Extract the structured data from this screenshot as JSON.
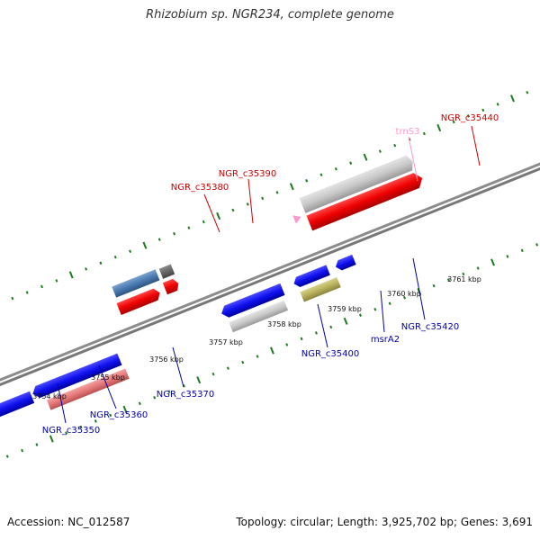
{
  "title": "Rhizobium sp. NGR234, complete genome",
  "footer": {
    "accession": "Accession: NC_012587",
    "topology": "Topology: circular; Length: 3,925,702 bp; Genes: 3,691"
  },
  "colors": {
    "backbone": "#808080",
    "tick": "#1e7a1e",
    "label_forward": "#cc0000",
    "label_reverse": "#0000aa",
    "label_trna": "#ff99cc"
  },
  "scale": {
    "kbp_labels": [
      {
        "text": "3754 kbp",
        "value": 3754
      },
      {
        "text": "3755 kbp",
        "value": 3755
      },
      {
        "text": "3756 kbp",
        "value": 3756
      },
      {
        "text": "3757 kbp",
        "value": 3757
      },
      {
        "text": "3758 kbp",
        "value": 3758
      },
      {
        "text": "3759 kbp",
        "value": 3759
      },
      {
        "text": "3760 kbp",
        "value": 3760
      },
      {
        "text": "3761 kbp",
        "value": 3761
      }
    ]
  },
  "genes": [
    {
      "label": "NGR_c35440",
      "strand": "forward"
    },
    {
      "label": "trnS3",
      "strand": "forward",
      "type": "tRNA"
    },
    {
      "label": "NGR_c35390",
      "strand": "forward"
    },
    {
      "label": "NGR_c35380",
      "strand": "forward"
    },
    {
      "label": "NGR_c35420",
      "strand": "reverse"
    },
    {
      "label": "msrA2",
      "strand": "reverse"
    },
    {
      "label": "NGR_c35400",
      "strand": "reverse"
    },
    {
      "label": "NGR_c35370",
      "strand": "reverse"
    },
    {
      "label": "NGR_c35360",
      "strand": "reverse"
    },
    {
      "label": "NGR_c35350",
      "strand": "reverse"
    }
  ]
}
